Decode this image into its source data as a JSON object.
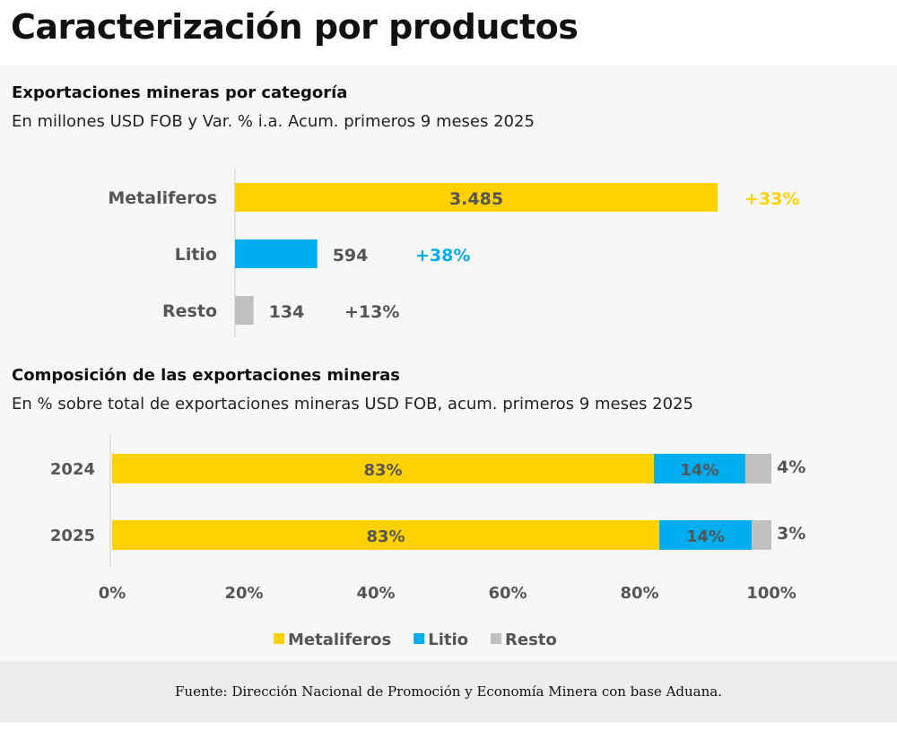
{
  "page_title": "Caracterización por productos",
  "chart_data": [
    {
      "type": "bar",
      "orientation": "horizontal",
      "title": "Exportaciones mineras por categoría",
      "subtitle": "En millones USD FOB y Var. % i.a. Acum. primeros 9 meses 2025",
      "categories": [
        "Metaliferos",
        "Litio",
        "Resto"
      ],
      "values": [
        3485,
        594,
        134
      ],
      "value_labels": [
        "3.485",
        "594",
        "134"
      ],
      "variation_labels": [
        "+33%",
        "+38%",
        "+13%"
      ],
      "colors": [
        "#ffd100",
        "#00aeef",
        "#c0c0c0"
      ]
    },
    {
      "type": "bar",
      "orientation": "horizontal",
      "stacked": true,
      "title": "Composición de las exportaciones mineras",
      "subtitle": "En % sobre total de exportaciones mineras USD FOB, acum. primeros 9 meses 2025",
      "categories": [
        "2024",
        "2025"
      ],
      "series": [
        {
          "name": "Metaliferos",
          "values": [
            83,
            83
          ],
          "color": "#ffd100"
        },
        {
          "name": "Litio",
          "values": [
            14,
            14
          ],
          "color": "#00aeef"
        },
        {
          "name": "Resto",
          "values": [
            4,
            3
          ],
          "color": "#c0c0c0"
        }
      ],
      "xlim": [
        0,
        100
      ],
      "x_ticks": [
        "0%",
        "20%",
        "40%",
        "60%",
        "80%",
        "100%"
      ],
      "legend": "bottom"
    }
  ],
  "footer": "Fuente: Dirección Nacional de Promoción y Economía Minera con base Aduana."
}
